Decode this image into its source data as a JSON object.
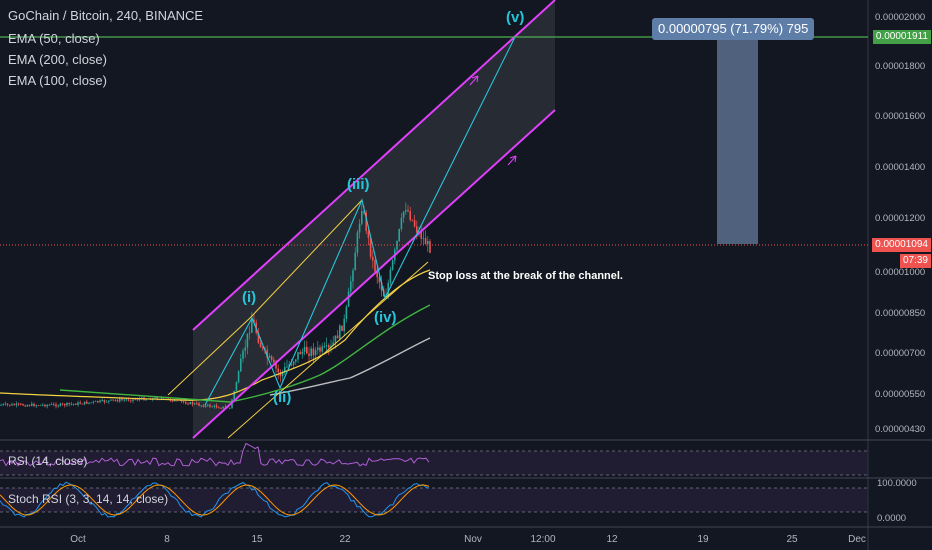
{
  "header": {
    "title": "GoChain / Bitcoin, 240, BINANCE",
    "indicators": [
      "EMA (50, close)",
      "EMA (200, close)",
      "EMA (100, close)"
    ]
  },
  "panes": {
    "rsi_label": "RSI (14, close)",
    "stoch_label": "Stoch RSI (3, 3, 14, 14, close)",
    "stoch_ticks": [
      "100.0000",
      "0.0000"
    ]
  },
  "measure_label": "0.00000795 (71.79%) 795",
  "stop_loss_note": "Stop loss at the break of the channel.",
  "wave_labels": [
    "(i)",
    "(ii)",
    "(iii)",
    "(iv)",
    "(v)"
  ],
  "price_tags": {
    "target": "0.00001911",
    "current": "0.00001094",
    "countdown": "07:39"
  },
  "colors": {
    "background": "#131722",
    "candle_up": "#26a69a",
    "candle_down": "#ef5350",
    "channel": "#e040fb",
    "wave": "#26c6da",
    "target_line": "#4caf50",
    "current_line": "#ef5350",
    "measure": "#5b6e8c"
  },
  "chart_data": {
    "type": "candlestick",
    "y_ticks": [
      "0.00002000",
      "0.00001800",
      "0.00001600",
      "0.00001400",
      "0.00001200",
      "0.00001000",
      "0.00000850",
      "0.00000700",
      "0.00000550",
      "0.00000430"
    ],
    "x_ticks": [
      "Oct",
      "8",
      "15",
      "22",
      "Nov",
      "12:00",
      "12",
      "19",
      "25",
      "Dec"
    ],
    "target_price": 1.911e-05,
    "current_price": 1.094e-05,
    "measure_change": 7.95e-06,
    "measure_percent": 71.79,
    "ema_50": "green",
    "ema_100": "yellow",
    "ema_200": "gray"
  }
}
